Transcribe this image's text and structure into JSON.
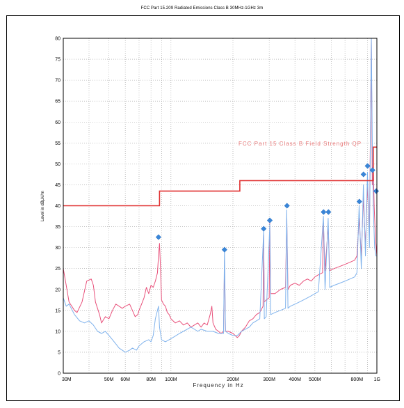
{
  "chart_data": {
    "type": "line",
    "title": "FCC Part 15.209 Radiated Emissions Class B 30MHz-1GHz 3m",
    "xlabel": "Frequency in Hz",
    "ylabel": "Level in dBµV/m",
    "xscale": "log",
    "xlim": [
      30,
      1000
    ],
    "ylim": [
      0,
      80
    ],
    "x_unit": "MHz",
    "grid": true,
    "y_ticks": [
      0,
      5,
      10,
      15,
      20,
      25,
      30,
      35,
      40,
      45,
      50,
      55,
      60,
      65,
      70,
      75,
      80
    ],
    "x_ticks": [
      {
        "value": 30,
        "label": "30M"
      },
      {
        "value": 50,
        "label": "50M"
      },
      {
        "value": 60,
        "label": "60M"
      },
      {
        "value": 80,
        "label": "80M"
      },
      {
        "value": 100,
        "label": "100M"
      },
      {
        "value": 200,
        "label": "200M"
      },
      {
        "value": 300,
        "label": "300M"
      },
      {
        "value": 400,
        "label": "400M"
      },
      {
        "value": 500,
        "label": "500M"
      },
      {
        "value": 800,
        "label": "800M"
      },
      {
        "value": 1000,
        "label": "1G"
      }
    ],
    "limit_line": {
      "label": "FCC Part 15 Class B Field Strength QP",
      "color": "#e03030",
      "points": [
        [
          30,
          40
        ],
        [
          88,
          40
        ],
        [
          88,
          43.5
        ],
        [
          216,
          43.5
        ],
        [
          216,
          46
        ],
        [
          960,
          46
        ],
        [
          960,
          54
        ],
        [
          1000,
          54
        ]
      ]
    },
    "series": [
      {
        "color": "#e8507a",
        "points": [
          [
            30,
            25
          ],
          [
            31,
            21
          ],
          [
            32,
            17
          ],
          [
            34,
            15
          ],
          [
            35,
            14.5
          ],
          [
            37,
            17
          ],
          [
            39,
            22
          ],
          [
            41,
            22.5
          ],
          [
            42,
            21
          ],
          [
            43,
            17
          ],
          [
            45,
            14
          ],
          [
            46,
            12
          ],
          [
            48,
            13.5
          ],
          [
            50,
            13
          ],
          [
            52,
            15
          ],
          [
            54,
            16.5
          ],
          [
            56,
            16
          ],
          [
            58,
            15.5
          ],
          [
            60,
            16
          ],
          [
            63,
            16.5
          ],
          [
            65,
            15
          ],
          [
            67,
            13.5
          ],
          [
            69,
            14
          ],
          [
            70,
            15
          ],
          [
            72,
            16.5
          ],
          [
            74,
            18
          ],
          [
            76,
            20.5
          ],
          [
            78,
            19
          ],
          [
            80,
            21
          ],
          [
            82,
            20.5
          ],
          [
            84,
            22
          ],
          [
            86,
            24
          ],
          [
            87,
            28
          ],
          [
            88,
            31
          ],
          [
            89,
            25
          ],
          [
            90,
            17.5
          ],
          [
            92,
            16.5
          ],
          [
            94,
            16
          ],
          [
            96,
            14.5
          ],
          [
            98,
            14
          ],
          [
            100,
            13
          ],
          [
            105,
            12
          ],
          [
            110,
            12.5
          ],
          [
            115,
            11.5
          ],
          [
            120,
            12
          ],
          [
            125,
            11
          ],
          [
            130,
            11.5
          ],
          [
            135,
            12
          ],
          [
            140,
            11
          ],
          [
            145,
            12
          ],
          [
            150,
            11.5
          ],
          [
            155,
            14
          ],
          [
            158,
            16
          ],
          [
            160,
            12
          ],
          [
            165,
            10.5
          ],
          [
            170,
            10
          ],
          [
            175,
            9.5
          ],
          [
            180,
            10
          ],
          [
            182,
            27
          ],
          [
            184,
            10
          ],
          [
            190,
            10
          ],
          [
            200,
            9.5
          ],
          [
            205,
            9
          ],
          [
            210,
            8.5
          ],
          [
            215,
            9
          ],
          [
            220,
            10
          ],
          [
            230,
            11
          ],
          [
            240,
            12.5
          ],
          [
            250,
            13
          ],
          [
            260,
            14
          ],
          [
            270,
            14.5
          ],
          [
            280,
            16
          ],
          [
            282,
            33
          ],
          [
            284,
            17
          ],
          [
            290,
            17.5
          ],
          [
            300,
            18
          ],
          [
            302,
            36
          ],
          [
            305,
            19
          ],
          [
            320,
            19
          ],
          [
            340,
            20
          ],
          [
            360,
            20.5
          ],
          [
            365,
            37
          ],
          [
            370,
            20
          ],
          [
            380,
            21
          ],
          [
            400,
            21.5
          ],
          [
            420,
            21
          ],
          [
            440,
            22
          ],
          [
            460,
            22.5
          ],
          [
            480,
            22
          ],
          [
            500,
            23
          ],
          [
            520,
            23.5
          ],
          [
            545,
            24
          ],
          [
            550,
            36
          ],
          [
            560,
            24.5
          ],
          [
            580,
            35
          ],
          [
            590,
            24.5
          ],
          [
            620,
            25
          ],
          [
            660,
            25.5
          ],
          [
            700,
            26
          ],
          [
            740,
            26.5
          ],
          [
            780,
            27
          ],
          [
            800,
            28
          ],
          [
            820,
            37
          ],
          [
            840,
            28
          ],
          [
            860,
            42
          ],
          [
            880,
            30
          ],
          [
            900,
            45
          ],
          [
            920,
            34
          ],
          [
            940,
            80
          ],
          [
            950,
            45
          ],
          [
            960,
            50
          ],
          [
            970,
            40
          ],
          [
            985,
            32
          ],
          [
            1000,
            28
          ]
        ]
      },
      {
        "color": "#7fb2ec",
        "points": [
          [
            30,
            18
          ],
          [
            31,
            16
          ],
          [
            32,
            16.5
          ],
          [
            34,
            14
          ],
          [
            36,
            12.5
          ],
          [
            38,
            12
          ],
          [
            40,
            12.5
          ],
          [
            42,
            11.5
          ],
          [
            44,
            10
          ],
          [
            46,
            9.5
          ],
          [
            48,
            10
          ],
          [
            50,
            9
          ],
          [
            52,
            8
          ],
          [
            54,
            7
          ],
          [
            56,
            6
          ],
          [
            58,
            5.5
          ],
          [
            60,
            5
          ],
          [
            63,
            5.5
          ],
          [
            65,
            6
          ],
          [
            68,
            5.5
          ],
          [
            70,
            6.5
          ],
          [
            74,
            7.5
          ],
          [
            78,
            8
          ],
          [
            80,
            7.5
          ],
          [
            82,
            9
          ],
          [
            84,
            13
          ],
          [
            86,
            15
          ],
          [
            87,
            16
          ],
          [
            88,
            11
          ],
          [
            90,
            8
          ],
          [
            94,
            7.5
          ],
          [
            98,
            8
          ],
          [
            102,
            8.5
          ],
          [
            106,
            9
          ],
          [
            110,
            9.5
          ],
          [
            115,
            10
          ],
          [
            120,
            10.5
          ],
          [
            125,
            11
          ],
          [
            130,
            10.5
          ],
          [
            135,
            10
          ],
          [
            140,
            10.5
          ],
          [
            150,
            10
          ],
          [
            160,
            10
          ],
          [
            170,
            9.5
          ],
          [
            180,
            9.5
          ],
          [
            182,
            30
          ],
          [
            184,
            10
          ],
          [
            190,
            9.5
          ],
          [
            200,
            9
          ],
          [
            210,
            9
          ],
          [
            220,
            10
          ],
          [
            230,
            10.5
          ],
          [
            240,
            11
          ],
          [
            250,
            12
          ],
          [
            260,
            12.5
          ],
          [
            270,
            13
          ],
          [
            282,
            34
          ],
          [
            284,
            13
          ],
          [
            290,
            13.5
          ],
          [
            302,
            35.5
          ],
          [
            305,
            14
          ],
          [
            320,
            14.5
          ],
          [
            340,
            15
          ],
          [
            360,
            15.5
          ],
          [
            365,
            39
          ],
          [
            370,
            15.5
          ],
          [
            380,
            16
          ],
          [
            400,
            16.5
          ],
          [
            420,
            17
          ],
          [
            440,
            17.5
          ],
          [
            460,
            18
          ],
          [
            480,
            18.5
          ],
          [
            500,
            19
          ],
          [
            520,
            19.5
          ],
          [
            550,
            37.5
          ],
          [
            560,
            20
          ],
          [
            580,
            37
          ],
          [
            590,
            20.5
          ],
          [
            620,
            21
          ],
          [
            660,
            21.5
          ],
          [
            700,
            22
          ],
          [
            740,
            22.5
          ],
          [
            780,
            23
          ],
          [
            800,
            24
          ],
          [
            820,
            40
          ],
          [
            840,
            25
          ],
          [
            860,
            45
          ],
          [
            880,
            28
          ],
          [
            900,
            48
          ],
          [
            920,
            30
          ],
          [
            940,
            80
          ],
          [
            950,
            55
          ],
          [
            960,
            40
          ],
          [
            975,
            30
          ],
          [
            990,
            28
          ],
          [
            1000,
            28
          ]
        ]
      }
    ],
    "markers": [
      {
        "x": 87,
        "y": 32.5
      },
      {
        "x": 182,
        "y": 29.5
      },
      {
        "x": 282,
        "y": 34.5
      },
      {
        "x": 302,
        "y": 36.5
      },
      {
        "x": 366,
        "y": 40
      },
      {
        "x": 551,
        "y": 38.5
      },
      {
        "x": 582,
        "y": 38.5
      },
      {
        "x": 822,
        "y": 41
      },
      {
        "x": 861,
        "y": 47.5
      },
      {
        "x": 901,
        "y": 49.5
      },
      {
        "x": 952,
        "y": 48.5
      },
      {
        "x": 992,
        "y": 43.5
      }
    ],
    "marker_color": "#3a86d8"
  }
}
